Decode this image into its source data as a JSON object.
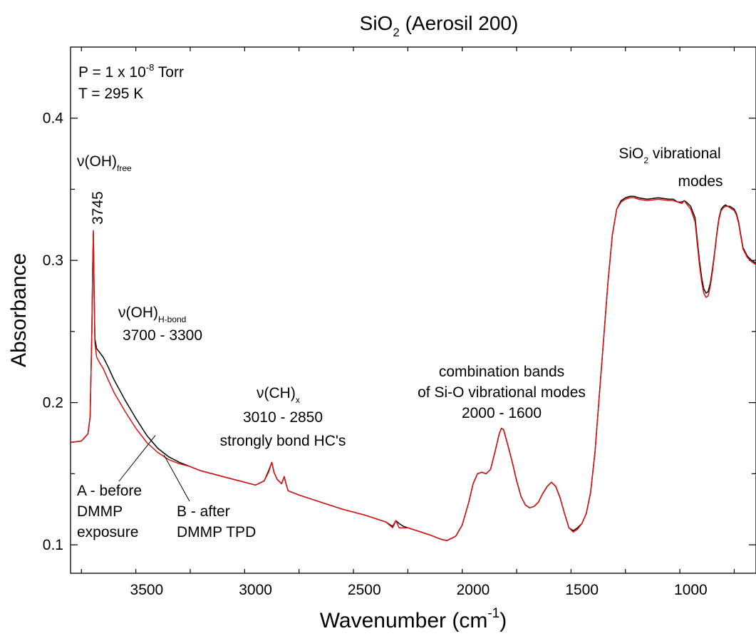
{
  "chart_data": {
    "type": "line",
    "title": {
      "base": "SiO",
      "sub": "2",
      "rest": " (Aerosil 200)"
    },
    "xlabel": {
      "base": "Wavenumber (cm",
      "sup": "-1",
      "end": ")"
    },
    "ylabel": "Absorbance",
    "xlim": [
      3850,
      700
    ],
    "ylim": [
      0.08,
      0.45
    ],
    "x_reversed": true,
    "grid": false,
    "x_ticks": [
      3500,
      3000,
      2500,
      2000,
      1500,
      1000
    ],
    "x_tick_labels": [
      "3500",
      "3000",
      "2500",
      "2000",
      "1500",
      "1000"
    ],
    "y_ticks": [
      0.1,
      0.2,
      0.3,
      0.4
    ],
    "y_tick_labels": [
      "0.1",
      "0.2",
      "0.3",
      "0.4"
    ],
    "colors": {
      "before": "#000000",
      "after": "#dd1111"
    },
    "series": [
      {
        "key": "A",
        "x": [
          3850,
          3800,
          3770,
          3760,
          3752,
          3748,
          3745,
          3742,
          3738,
          3730,
          3720,
          3700,
          3680,
          3650,
          3600,
          3550,
          3500,
          3450,
          3400,
          3350,
          3300,
          3250,
          3200,
          3100,
          3000,
          2960,
          2940,
          2925,
          2915,
          2900,
          2880,
          2868,
          2860,
          2850,
          2800,
          2700,
          2600,
          2500,
          2400,
          2370,
          2355,
          2340,
          2320,
          2300,
          2200,
          2150,
          2120,
          2080,
          2050,
          2020,
          2000,
          1980,
          1960,
          1940,
          1920,
          1900,
          1880,
          1870,
          1860,
          1840,
          1820,
          1800,
          1780,
          1760,
          1740,
          1720,
          1700,
          1680,
          1660,
          1640,
          1620,
          1600,
          1580,
          1560,
          1540,
          1520,
          1500,
          1480,
          1460,
          1440,
          1420,
          1400,
          1380,
          1360,
          1340,
          1320,
          1300,
          1280,
          1260,
          1240,
          1200,
          1150,
          1100,
          1080,
          1060,
          1040,
          1030,
          1020,
          1000,
          980,
          970,
          960,
          950,
          940,
          930,
          920,
          910,
          900,
          890,
          880,
          870,
          860,
          850,
          840,
          830,
          820,
          810,
          800,
          790,
          780,
          770,
          760,
          740,
          720,
          700
        ],
        "y": [
          0.172,
          0.173,
          0.178,
          0.19,
          0.25,
          0.3,
          0.32,
          0.28,
          0.245,
          0.238,
          0.236,
          0.232,
          0.226,
          0.216,
          0.202,
          0.189,
          0.177,
          0.168,
          0.162,
          0.158,
          0.155,
          0.152,
          0.15,
          0.146,
          0.142,
          0.145,
          0.152,
          0.158,
          0.151,
          0.146,
          0.143,
          0.148,
          0.143,
          0.138,
          0.135,
          0.13,
          0.125,
          0.121,
          0.116,
          0.113,
          0.117,
          0.115,
          0.113,
          0.112,
          0.107,
          0.104,
          0.103,
          0.106,
          0.114,
          0.13,
          0.143,
          0.15,
          0.151,
          0.15,
          0.153,
          0.165,
          0.178,
          0.182,
          0.181,
          0.17,
          0.158,
          0.145,
          0.134,
          0.128,
          0.126,
          0.127,
          0.13,
          0.136,
          0.141,
          0.144,
          0.141,
          0.133,
          0.122,
          0.112,
          0.11,
          0.112,
          0.115,
          0.122,
          0.137,
          0.165,
          0.205,
          0.245,
          0.285,
          0.318,
          0.336,
          0.342,
          0.344,
          0.345,
          0.345,
          0.344,
          0.343,
          0.344,
          0.343,
          0.343,
          0.341,
          0.341,
          0.342,
          0.341,
          0.338,
          0.33,
          0.315,
          0.3,
          0.288,
          0.28,
          0.277,
          0.278,
          0.284,
          0.294,
          0.306,
          0.319,
          0.33,
          0.336,
          0.338,
          0.339,
          0.338,
          0.338,
          0.337,
          0.336,
          0.333,
          0.327,
          0.318,
          0.309,
          0.303,
          0.3,
          0.298
        ]
      },
      {
        "key": "B",
        "x": [
          3850,
          3800,
          3770,
          3760,
          3752,
          3748,
          3745,
          3742,
          3738,
          3730,
          3720,
          3700,
          3680,
          3650,
          3600,
          3550,
          3500,
          3450,
          3400,
          3350,
          3300,
          3250,
          3200,
          3100,
          3000,
          2960,
          2940,
          2925,
          2915,
          2900,
          2880,
          2868,
          2860,
          2850,
          2800,
          2700,
          2600,
          2500,
          2400,
          2370,
          2355,
          2340,
          2320,
          2300,
          2200,
          2150,
          2120,
          2080,
          2050,
          2020,
          2000,
          1980,
          1960,
          1940,
          1920,
          1900,
          1880,
          1870,
          1860,
          1840,
          1820,
          1800,
          1780,
          1760,
          1740,
          1720,
          1700,
          1680,
          1660,
          1640,
          1620,
          1600,
          1580,
          1560,
          1540,
          1520,
          1500,
          1480,
          1460,
          1440,
          1420,
          1400,
          1380,
          1360,
          1340,
          1320,
          1300,
          1280,
          1260,
          1240,
          1200,
          1150,
          1100,
          1080,
          1060,
          1040,
          1030,
          1020,
          1000,
          980,
          970,
          960,
          950,
          940,
          930,
          920,
          910,
          900,
          890,
          880,
          870,
          860,
          850,
          840,
          830,
          820,
          810,
          800,
          790,
          780,
          770,
          760,
          740,
          720,
          700
        ],
        "y": [
          0.172,
          0.173,
          0.178,
          0.19,
          0.25,
          0.3,
          0.321,
          0.28,
          0.242,
          0.232,
          0.229,
          0.224,
          0.217,
          0.207,
          0.194,
          0.182,
          0.172,
          0.165,
          0.16,
          0.157,
          0.155,
          0.152,
          0.15,
          0.146,
          0.142,
          0.145,
          0.151,
          0.158,
          0.151,
          0.146,
          0.143,
          0.148,
          0.143,
          0.138,
          0.135,
          0.13,
          0.125,
          0.121,
          0.116,
          0.112,
          0.117,
          0.112,
          0.112,
          0.112,
          0.107,
          0.104,
          0.103,
          0.106,
          0.114,
          0.13,
          0.143,
          0.15,
          0.151,
          0.15,
          0.153,
          0.165,
          0.178,
          0.182,
          0.181,
          0.17,
          0.158,
          0.145,
          0.134,
          0.128,
          0.126,
          0.127,
          0.13,
          0.136,
          0.141,
          0.144,
          0.141,
          0.133,
          0.122,
          0.112,
          0.109,
          0.111,
          0.115,
          0.122,
          0.137,
          0.165,
          0.205,
          0.245,
          0.285,
          0.318,
          0.336,
          0.341,
          0.343,
          0.344,
          0.344,
          0.343,
          0.342,
          0.343,
          0.342,
          0.342,
          0.341,
          0.34,
          0.342,
          0.34,
          0.336,
          0.327,
          0.312,
          0.297,
          0.285,
          0.277,
          0.274,
          0.275,
          0.282,
          0.292,
          0.305,
          0.318,
          0.329,
          0.335,
          0.337,
          0.338,
          0.338,
          0.337,
          0.336,
          0.335,
          0.332,
          0.326,
          0.317,
          0.308,
          0.302,
          0.299,
          0.297
        ]
      }
    ],
    "annotations": {
      "conditions": {
        "pressure": {
          "base": "P = 1 x 10",
          "sup": "-8",
          "end": " Torr"
        },
        "temperature": "T = 295 K"
      },
      "oh_free": {
        "nu": "ν(OH)",
        "sub": "free",
        "peak": "3745"
      },
      "oh_hbond": {
        "nu": "ν(OH)",
        "sub": "H-bond",
        "range": "3700 - 3300"
      },
      "ch": {
        "nu": "ν(CH)",
        "sub": "x",
        "range": "3010 - 2850",
        "note": "strongly bond HC's"
      },
      "combination": {
        "line1": "combination bands",
        "line2": "of Si-O vibrational modes",
        "range": "2000 - 1600"
      },
      "sio2_modes": {
        "base": "SiO",
        "sub": "2",
        "rest": " vibrational",
        "line2": "modes"
      },
      "label_a": {
        "line1": "A - before",
        "line2": "DMMP",
        "line3": "exposure",
        "x": 3460,
        "y": 0.177
      },
      "label_b": {
        "line1": "B - after",
        "line2": "DMMP TPD",
        "x": 3420,
        "y": 0.163
      }
    }
  }
}
